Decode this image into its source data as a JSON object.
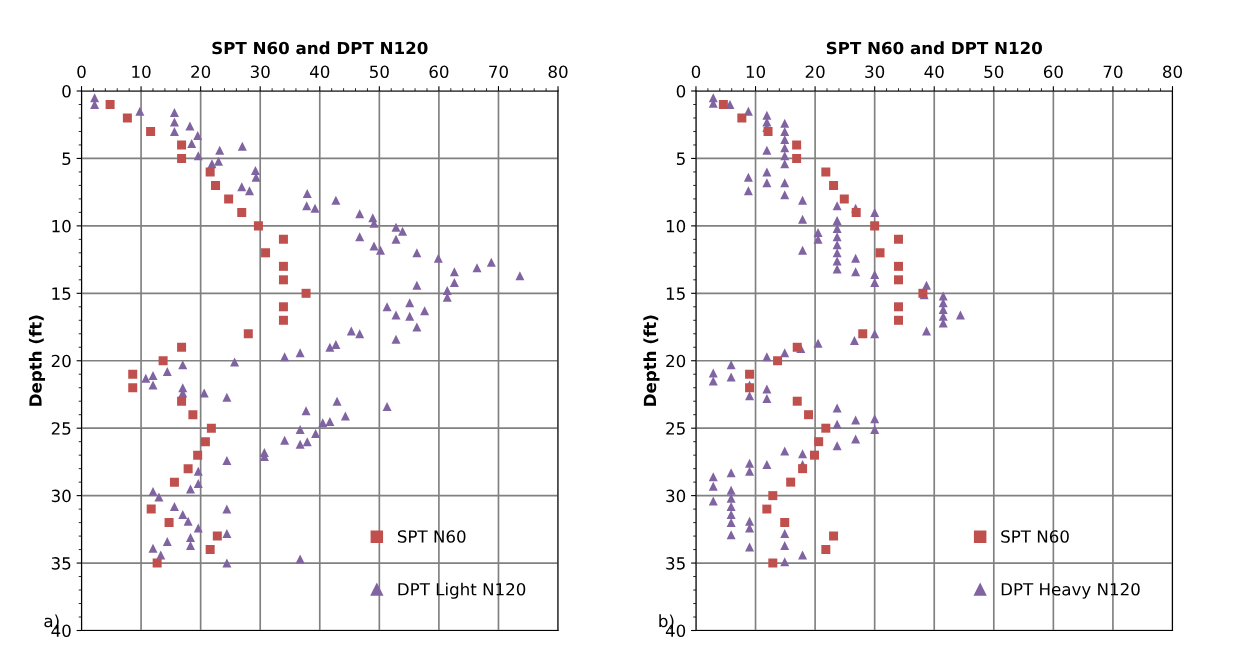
{
  "chart_data": [
    {
      "type": "scatter",
      "xlabel": "SPT N60 and DPT N120",
      "ylabel": "Depth (ft)",
      "annotations": [
        "a)"
      ],
      "xlim": [
        0,
        80
      ],
      "xticks": [
        0,
        10,
        20,
        30,
        40,
        50,
        60,
        70,
        80
      ],
      "ylim": [
        40,
        0
      ],
      "yticks": [
        0,
        5,
        10,
        15,
        20,
        25,
        30,
        35,
        40
      ],
      "grid": true,
      "legend": "bottom right",
      "series": [
        {
          "name": "SPT N60",
          "color": "#c0504d",
          "marker": "square",
          "x": [
            4.8,
            7.7,
            11.6,
            16.8,
            16.8,
            21.6,
            22.5,
            24.7,
            26.9,
            29.7,
            33.9,
            30.9,
            33.9,
            33.9,
            37.7,
            33.9,
            33.9,
            28,
            16.8,
            13.7,
            8.6,
            8.6,
            16.8,
            18.7,
            21.8,
            20.8,
            19.5,
            17.9,
            15.6,
            11.7,
            14.7,
            22.8,
            21.6,
            12.7
          ],
          "values": [
            1,
            2,
            3,
            4,
            5,
            6,
            7,
            8,
            9,
            10,
            11,
            12,
            13,
            14,
            15,
            16,
            17,
            18,
            19,
            20,
            21,
            22,
            23,
            24,
            25,
            26,
            27,
            28,
            29,
            31,
            32,
            33,
            34,
            35
          ]
        },
        {
          "name": "DPT Light N120",
          "color": "#8064a2",
          "marker": "triangle",
          "x": [
            2.2,
            2.2,
            9.8,
            15.6,
            15.6,
            15.6,
            18.2,
            19.5,
            18.5,
            19.6,
            23.2,
            27,
            21.9,
            23,
            29.2,
            29.3,
            26.9,
            28.2,
            37.9,
            37.8,
            39.2,
            42.7,
            46.7,
            46.7,
            48.9,
            49.1,
            49.1,
            50.2,
            52.8,
            53.9,
            52.8,
            56.3,
            59.9,
            62.6,
            62.6,
            56.3,
            66.4,
            68.8,
            73.6,
            61.4,
            61.4,
            51.3,
            52.8,
            55.1,
            55.1,
            57.6,
            56.3,
            52.8,
            45.3,
            46.7,
            41.7,
            42.7,
            34.1,
            36.7,
            25.7,
            17,
            14.4,
            10.8,
            12,
            12,
            17,
            17,
            20.6,
            24.4,
            51.3,
            42.9,
            37.7,
            44.3,
            41.7,
            40.5,
            36.7,
            39.3,
            34.1,
            36.7,
            37.9,
            30.7,
            30.7,
            24.4,
            19.6,
            19.6,
            18.3,
            12,
            13,
            15.6,
            17,
            17.9,
            19.6,
            24.4,
            24.4,
            18.3,
            18.3,
            14.4,
            12,
            13.3,
            36.7,
            24.4
          ],
          "values": [
            0.5,
            1,
            1.5,
            1.6,
            2.3,
            3,
            2.6,
            3.3,
            3.9,
            4.8,
            4.4,
            4.1,
            5.4,
            5.2,
            5.9,
            6.4,
            7.1,
            7.4,
            7.6,
            8.5,
            8.7,
            8.1,
            9.1,
            10.8,
            9.4,
            9.8,
            11.5,
            11.8,
            10.1,
            10.4,
            11,
            12,
            12.4,
            13.4,
            14.2,
            14.4,
            13.1,
            12.7,
            13.7,
            14.8,
            15.3,
            16,
            16.6,
            15.7,
            16.7,
            16.3,
            17.5,
            18.4,
            17.8,
            18,
            19,
            18.8,
            19.7,
            19.4,
            20.1,
            20.3,
            20.8,
            21.3,
            21.1,
            21.8,
            22,
            22.4,
            22.4,
            22.7,
            23.4,
            23,
            23.7,
            24.1,
            24.5,
            24.6,
            25.1,
            25.4,
            25.9,
            26.2,
            26,
            26.8,
            27.1,
            27.4,
            28.2,
            29.1,
            29.5,
            29.7,
            30.1,
            30.8,
            31.4,
            31.9,
            32.4,
            31,
            32.8,
            33.1,
            33.7,
            33.4,
            33.9,
            34.4,
            34.7,
            35
          ]
        }
      ]
    },
    {
      "type": "scatter",
      "xlabel": "SPT N60 and DPT N120",
      "ylabel": "Depth (ft)",
      "annotations": [
        "b)"
      ],
      "xlim": [
        0,
        80
      ],
      "xticks": [
        0,
        10,
        20,
        30,
        40,
        50,
        60,
        70,
        80
      ],
      "ylim": [
        40,
        0
      ],
      "yticks": [
        0,
        5,
        10,
        15,
        20,
        25,
        30,
        35,
        40
      ],
      "grid": true,
      "legend": "bottom right",
      "series": [
        {
          "name": "SPT N60",
          "color": "#c0504d",
          "marker": "square",
          "x": [
            4.6,
            7.7,
            12.1,
            16.9,
            16.9,
            21.8,
            23.1,
            24.9,
            26.9,
            30,
            34,
            30.9,
            34,
            34,
            38.1,
            34,
            34,
            28,
            17,
            13.7,
            9,
            9,
            17,
            18.9,
            21.8,
            20.6,
            19.9,
            17.9,
            15.9,
            12.9,
            11.9,
            14.9,
            23.1,
            21.8,
            12.9
          ],
          "values": [
            1,
            2,
            3,
            4,
            5,
            6,
            7,
            8,
            9,
            10,
            11,
            12,
            13,
            14,
            15,
            16,
            17,
            18,
            19,
            20,
            21,
            22,
            23,
            24,
            25,
            26,
            27,
            28,
            29,
            30,
            31,
            32,
            33,
            34,
            35
          ]
        },
        {
          "name": "DPT Heavy N120",
          "color": "#8064a2",
          "marker": "triangle",
          "x": [
            2.9,
            2.9,
            5.7,
            8.8,
            11.9,
            11.9,
            11.9,
            11.9,
            11.9,
            11.9,
            14.9,
            14.9,
            14.9,
            14.9,
            14.9,
            14.9,
            14.9,
            14.9,
            8.8,
            8.8,
            17.9,
            17.9,
            17.9,
            20.5,
            20.5,
            23.7,
            23.7,
            23.7,
            23.7,
            23.7,
            23.7,
            23.7,
            23.7,
            26.8,
            26.8,
            26.8,
            30,
            30,
            30,
            38.7,
            38.3,
            41.5,
            41.5,
            41.5,
            41.5,
            41.5,
            44.4,
            38.7,
            30,
            26.6,
            20.5,
            17.6,
            14.9,
            11.9,
            5.9,
            5.9,
            2.9,
            2.9,
            9,
            9,
            11.9,
            11.9,
            23.7,
            23.7,
            23.7,
            26.8,
            26.8,
            30,
            30,
            17.9,
            17.9,
            14.9,
            11.9,
            9,
            9,
            5.9,
            2.9,
            2.9,
            2.9,
            5.9,
            5.9,
            5.9,
            5.9,
            5.9,
            5.9,
            9,
            9,
            9,
            14.9,
            14.9,
            14.9,
            17.9
          ],
          "values": [
            0.5,
            0.9,
            1,
            1.5,
            1.8,
            2.3,
            2.7,
            4.4,
            6,
            6.8,
            2.4,
            3,
            3.6,
            4.2,
            4.8,
            5.4,
            6.8,
            7.7,
            6.4,
            7.4,
            8.1,
            9.5,
            11.8,
            10.5,
            11,
            8.5,
            9.6,
            10.2,
            10.8,
            11.4,
            12,
            12.6,
            13.2,
            8.7,
            12.4,
            13.4,
            9,
            13.6,
            14.2,
            14.4,
            15.1,
            15.2,
            15.7,
            16.2,
            16.7,
            17.2,
            16.6,
            17.8,
            18,
            18.5,
            18.7,
            19.1,
            19.4,
            19.7,
            20.3,
            21.2,
            20.9,
            21.5,
            21.8,
            22.6,
            22.1,
            22.8,
            23.5,
            24.7,
            26.3,
            24.4,
            25.8,
            24.3,
            25.1,
            26.9,
            27.7,
            26.7,
            27.7,
            27.6,
            28.2,
            28.3,
            28.6,
            29.3,
            30.4,
            29.6,
            30.2,
            30.8,
            31.4,
            32,
            32.9,
            31.9,
            32.4,
            33.8,
            32.8,
            33.7,
            34.9,
            34.4
          ]
        }
      ]
    }
  ]
}
